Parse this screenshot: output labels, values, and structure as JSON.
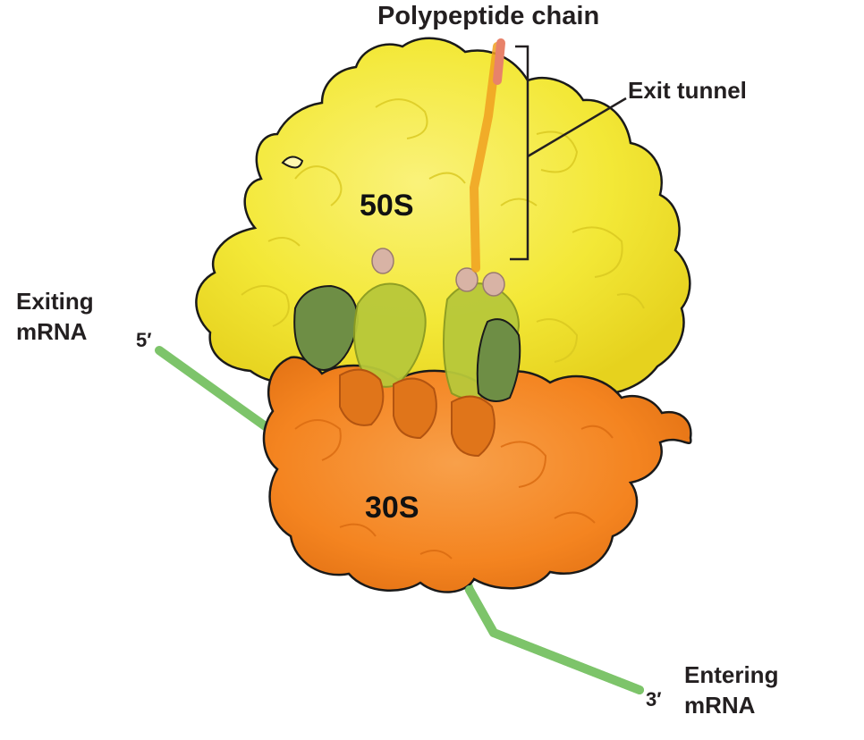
{
  "labels": {
    "polypeptide_chain": "Polypeptide chain",
    "exit_tunnel": "Exit tunnel",
    "large_subunit": "50S",
    "small_subunit": "30S",
    "exiting_mrna_line1": "Exiting",
    "exiting_mrna_line2": "mRNA",
    "entering_mrna_line1": "Entering",
    "entering_mrna_line2": "mRNA",
    "five_prime_end": "5′",
    "three_prime_end": "3′"
  },
  "colors": {
    "large_subunit": "#f4ea3a",
    "small_subunit": "#f5841f",
    "mrna": "#7dc46a",
    "polypeptide": "#e8826a",
    "trna_green": "#6e8e45",
    "trna_pink": "#d8b3a5",
    "leader_line": "#231f20"
  }
}
